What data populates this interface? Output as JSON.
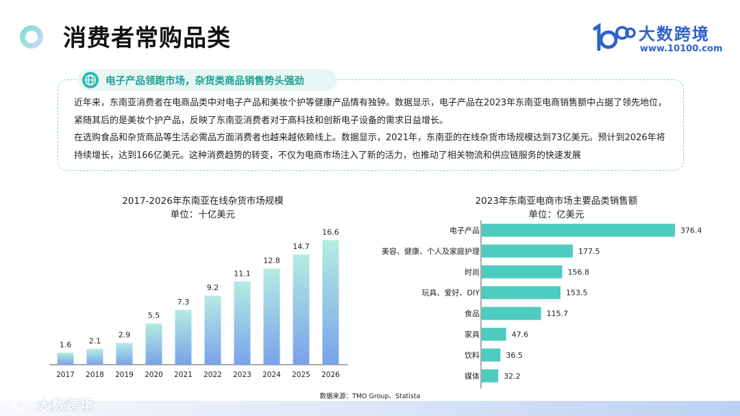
{
  "page": {
    "title": "消费者常购品类"
  },
  "brand": {
    "name": "大数跨境",
    "url": "www.10100.com",
    "watermark": "大数跨境"
  },
  "callout": {
    "heading": "电子产品领跑市场，杂货类商品销售势头强劲",
    "paragraph1": "近年来，东南亚消费者在电商品类中对电子产品和美妆个护等健康产品情有独钟。数据显示，电子产品在2023年东南亚电商销售额中占据了领先地位，紧随其后的是美妆个护产品，反映了东南亚消费者对于高科技和创新电子设备的需求日益增长。",
    "paragraph2": "在选购食品和杂货商品等生活必需品方面消费者也越来越依赖线上。数据显示，2021年，东南亚的在线杂货市场规模达到73亿美元。预计到2026年将持续增长，达到166亿美元。这种消费趋势的转变，不仅为电商市场注入了新的活力，也推动了相关物流和供应链服务的快速发展"
  },
  "source": "数据来源：TMO Group、Statista",
  "chart_data": [
    {
      "type": "bar",
      "title": "2017-2026年东南亚在线杂货市场规模",
      "subtitle": "单位：十亿美元",
      "categories": [
        "2017",
        "2018",
        "2019",
        "2020",
        "2021",
        "2022",
        "2023",
        "2024",
        "2025",
        "2026"
      ],
      "values": [
        1.6,
        2.1,
        2.9,
        5.5,
        7.3,
        9.2,
        11.1,
        12.8,
        14.7,
        16.6
      ],
      "ylim": [
        0,
        16.6
      ],
      "grid": false,
      "colors": {
        "top": "#b4ece2",
        "bottom": "#79a2ea"
      }
    },
    {
      "type": "bar",
      "orientation": "horizontal",
      "title": "2023年东南亚电商市场主要品类销售额",
      "subtitle": "单位：亿美元",
      "categories": [
        "电子产品",
        "美容、健康、个人及家庭护理",
        "时尚",
        "玩具、爱好、DIY",
        "食品",
        "家具",
        "饮料",
        "媒体"
      ],
      "values": [
        376.4,
        177.5,
        156.8,
        153.5,
        115.7,
        47.6,
        36.5,
        32.2
      ],
      "xlim": [
        0,
        376.4
      ],
      "grid": false,
      "colors": {
        "bar": "#4fccc0"
      }
    }
  ]
}
